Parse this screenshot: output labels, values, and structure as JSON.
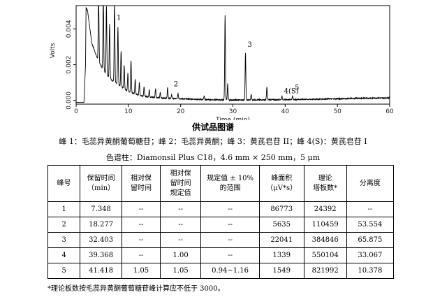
{
  "chart_data": {
    "type": "line",
    "xlabel": "Time (min)",
    "ylabel": "Volts",
    "xlim": [
      0,
      60
    ],
    "ylim": [
      -0.0002,
      0.0053
    ],
    "x_ticks": [
      "0",
      "10",
      "20",
      "30",
      "40",
      "50",
      "60"
    ],
    "y_ticks": [
      "0.000",
      "0.002",
      "0.004"
    ],
    "grid": false,
    "legend": "none",
    "series": [
      {
        "color": "#000000",
        "points": [
          [
            0,
            -0.0001
          ],
          [
            1.5,
            -0.0001
          ],
          [
            1.8,
            0.002
          ],
          [
            1.9,
            0.0052
          ],
          [
            2.2,
            0.005
          ],
          [
            3.0,
            0.0032
          ],
          [
            4.0,
            0.0024
          ],
          [
            5.0,
            0.0018
          ],
          [
            6.0,
            0.0014
          ],
          [
            7.0,
            0.0011
          ],
          [
            8.0,
            0.0009
          ],
          [
            9.0,
            0.0007
          ],
          [
            10.0,
            0.0005
          ],
          [
            11.0,
            0.0004
          ],
          [
            12.0,
            0.0003
          ],
          [
            14.0,
            0.0002
          ],
          [
            16.0,
            0.00015
          ],
          [
            18.0,
            0.00012
          ],
          [
            20.0,
            0.0001
          ],
          [
            25.0,
            5e-05
          ],
          [
            30.0,
            3e-05
          ],
          [
            35.0,
            4e-05
          ],
          [
            40.0,
            5e-05
          ],
          [
            45.0,
            7e-05
          ],
          [
            50.0,
            0.0001
          ],
          [
            55.0,
            0.00013
          ],
          [
            60.0,
            0.00015
          ]
        ],
        "peaks": [
          {
            "x": 4.3,
            "h": 0.004
          },
          {
            "x": 5.2,
            "h": 0.0045
          },
          {
            "x": 5.8,
            "h": 0.0038
          },
          {
            "x": 6.4,
            "h": 0.003
          },
          {
            "x": 7.348,
            "h": 0.0047
          },
          {
            "x": 8.0,
            "h": 0.0032
          },
          {
            "x": 8.6,
            "h": 0.002
          },
          {
            "x": 9.2,
            "h": 0.0013
          },
          {
            "x": 9.9,
            "h": 0.001
          },
          {
            "x": 10.5,
            "h": 0.0018
          },
          {
            "x": 11.3,
            "h": 0.0008
          },
          {
            "x": 12.1,
            "h": 0.0007
          },
          {
            "x": 13.0,
            "h": 0.0005
          },
          {
            "x": 14.0,
            "h": 0.0004
          },
          {
            "x": 15.2,
            "h": 0.0005
          },
          {
            "x": 16.1,
            "h": 0.0003
          },
          {
            "x": 17.5,
            "h": 0.0006
          },
          {
            "x": 18.277,
            "h": 0.0002
          },
          {
            "x": 19.5,
            "h": 0.0003
          },
          {
            "x": 24.5,
            "h": 0.0002
          },
          {
            "x": 28.5,
            "h": 0.0047
          },
          {
            "x": 29.0,
            "h": 0.0009
          },
          {
            "x": 32.403,
            "h": 0.0026
          },
          {
            "x": 33.5,
            "h": 0.0003
          },
          {
            "x": 36.5,
            "h": 0.0007
          },
          {
            "x": 39.368,
            "h": 0.0002
          },
          {
            "x": 41.418,
            "h": 0.0002
          }
        ]
      }
    ],
    "annotations": [
      {
        "text": "1",
        "x": 7.348,
        "y": 0.0045
      },
      {
        "text": "2",
        "x": 18.277,
        "y": 0.0008
      },
      {
        "text": "3",
        "x": 32.403,
        "y": 0.003
      },
      {
        "text": "4(S)",
        "x": 39.368,
        "y": 0.0004
      },
      {
        "text": "5",
        "x": 41.418,
        "y": 0.0006
      }
    ]
  },
  "caption": {
    "title": "供试品图谱",
    "peaks": "峰 1：毛蕊异黄酮葡萄糖苷；峰 2：毛蕊异黄酮；峰 3：黄芪皂苷 II；峰 4(S)：黄芪皂苷 I",
    "column": "色谱柱：Diamonsil Plus C18，4.6 mm × 250 mm，5 μm"
  },
  "table": {
    "headers": [
      [
        "峰号"
      ],
      [
        "保留时间",
        "（min）"
      ],
      [
        "相对保",
        "留时间"
      ],
      [
        "相对保",
        "留时间",
        "规定值"
      ],
      [
        "规定值 ± 10%",
        "的范围"
      ],
      [
        "峰面积",
        "（μV*s）"
      ],
      [
        "理论",
        "塔板数*"
      ],
      [
        "分离度"
      ]
    ],
    "rows": [
      [
        "1",
        "7.348",
        "--",
        "--",
        "--",
        "86773",
        "24392",
        "--"
      ],
      [
        "2",
        "18.277",
        "--",
        "--",
        "--",
        "5635",
        "110459",
        "53.554"
      ],
      [
        "3",
        "32.403",
        "--",
        "--",
        "--",
        "22041",
        "384846",
        "65.875"
      ],
      [
        "4",
        "39.368",
        "--",
        "1.00",
        "--",
        "1339",
        "550104",
        "33.067"
      ],
      [
        "5",
        "41.418",
        "1.05",
        "1.05",
        "0.94~1.16",
        "1549",
        "821992",
        "10.378"
      ]
    ]
  },
  "footnote": "*理论板数按毛蕊异黄酮葡萄糖苷峰计算应不低于 3000。"
}
